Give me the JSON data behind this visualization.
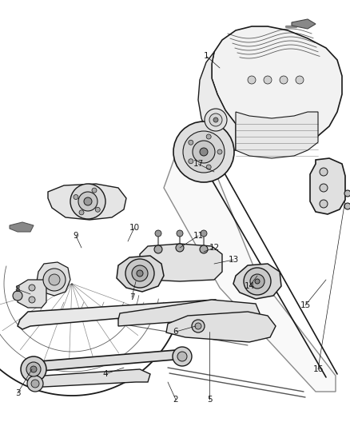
{
  "bg_color": "#ffffff",
  "line_color": "#1a1a1a",
  "label_color": "#1a1a1a",
  "fig_width": 4.38,
  "fig_height": 5.33,
  "dpi": 100,
  "leaders": {
    "1": {
      "lp": [
        0.515,
        0.847
      ],
      "pt": [
        0.545,
        0.825
      ]
    },
    "2": {
      "lp": [
        0.228,
        0.097
      ],
      "pt": [
        0.195,
        0.148
      ]
    },
    "3": {
      "lp": [
        0.025,
        0.148
      ],
      "pt": [
        0.055,
        0.178
      ]
    },
    "4": {
      "lp": [
        0.155,
        0.16
      ],
      "pt": [
        0.175,
        0.185
      ]
    },
    "5": {
      "lp": [
        0.34,
        0.093
      ],
      "pt": [
        0.33,
        0.155
      ]
    },
    "6": {
      "lp": [
        0.237,
        0.228
      ],
      "pt": [
        0.245,
        0.258
      ]
    },
    "7": {
      "lp": [
        0.197,
        0.283
      ],
      "pt": [
        0.215,
        0.313
      ]
    },
    "8": {
      "lp": [
        0.05,
        0.362
      ],
      "pt": [
        0.078,
        0.368
      ]
    },
    "9": {
      "lp": [
        0.15,
        0.408
      ],
      "pt": [
        0.172,
        0.43
      ]
    },
    "10": {
      "lp": [
        0.218,
        0.425
      ],
      "pt": [
        0.24,
        0.44
      ]
    },
    "11": {
      "lp": [
        0.33,
        0.432
      ],
      "pt": [
        0.32,
        0.443
      ]
    },
    "12": {
      "lp": [
        0.348,
        0.412
      ],
      "pt": [
        0.342,
        0.432
      ]
    },
    "13": {
      "lp": [
        0.38,
        0.395
      ],
      "pt": [
        0.365,
        0.428
      ]
    },
    "14": {
      "lp": [
        0.408,
        0.358
      ],
      "pt": [
        0.37,
        0.39
      ]
    },
    "15": {
      "lp": [
        0.825,
        0.372
      ],
      "pt": [
        0.81,
        0.43
      ]
    },
    "16": {
      "lp": [
        0.85,
        0.482
      ],
      "pt": [
        0.882,
        0.5
      ]
    },
    "17": {
      "lp": [
        0.405,
        0.548
      ],
      "pt": [
        0.448,
        0.595
      ]
    }
  }
}
